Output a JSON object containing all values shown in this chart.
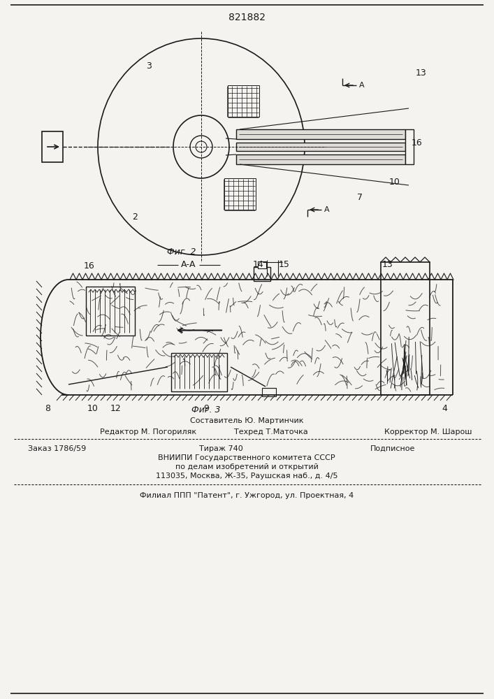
{
  "patent_number": "821882",
  "fig2_label": "Фиг. 2",
  "fig3_label": "Фиг. 3",
  "section_label": "А-А",
  "bg_color": "#f5f3ef",
  "line_color": "#1a1a1a",
  "composer_line": "Составитель Ю. Мартинчик",
  "editor_left": "Редактор М. Погориляк",
  "editor_center": "Техред Т.Маточка",
  "editor_right": "Корректор М. Шарош",
  "order_left": "Заказ 1786/59",
  "order_center": "Тираж 740",
  "order_right": "Подписное",
  "vnipi_line1": "ВНИИПИ Государственного комитета СССР",
  "vnipi_line2": "по делам изобретений и открытий",
  "vnipi_line3": "113035, Москва, Ж-35, Раушская наб., д. 4/5",
  "filial_line": "Филиал ППП \"Патент\", г. Ужгород, ул. Проектная, 4"
}
